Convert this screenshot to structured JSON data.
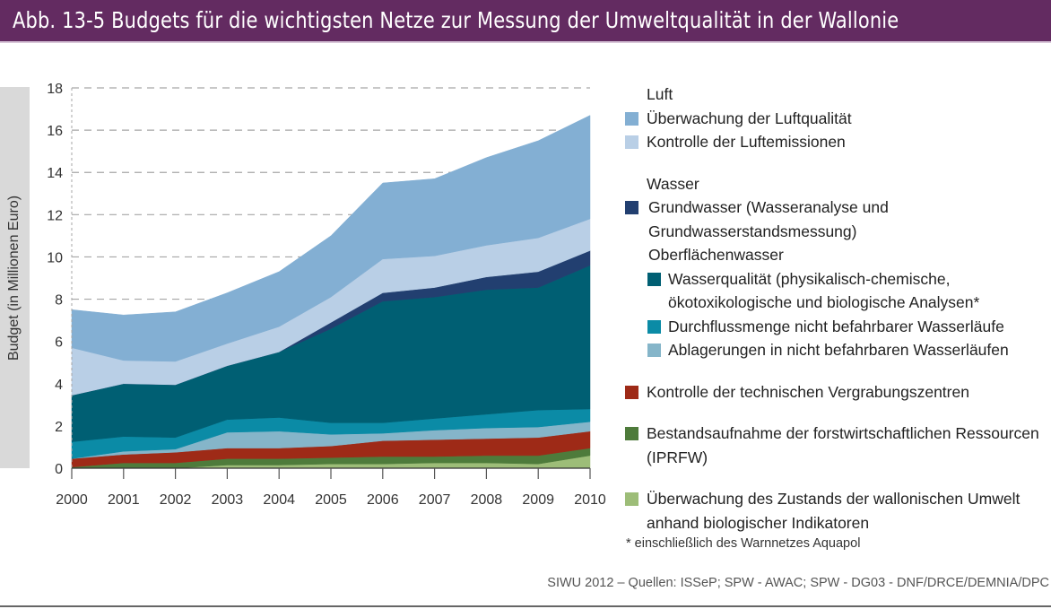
{
  "title": "Abb. 13-5 Budgets für die wichtigsten Netze zur Messung der Umweltqualität in der Wallonie",
  "footnote": "* einschließlich des Warnnetzes Aquapol",
  "source": "SIWU 2012 – Quellen: ISSeP; SPW - AWAC; SPW - DG03 - DNF/DRCE/DEMNIA/DPC",
  "legend": {
    "group_luft": "Luft",
    "group_wasser": "Wasser",
    "group_oberflaeche": "Oberflächenwasser",
    "luftqualitaet": "Überwachung der Luftqualität",
    "luftemissionen": "Kontrolle der Luftemissionen",
    "grundwasser_1": "Grundwasser (Wasseranalyse und",
    "grundwasser_2": "Grundwasserstandsmessung)",
    "wasserqualitaet_1": "Wasserqualität (physikalisch-chemische,",
    "wasserqualitaet_2": "ökotoxikologische und biologische Analysen*",
    "durchfluss": "Durchflussmenge nicht befahrbarer Wasserläufe",
    "ablagerungen": "Ablagerungen in nicht befahrbaren Wasserläufen",
    "vergrabung": "Kontrolle der technischen Vergrabungszentren",
    "iprfw_1": "Bestandsaufnahme der forstwirtschaftlichen Ressourcen",
    "iprfw_2": "(IPRFW)",
    "bio_1": "Überwachung des Zustands der wallonischen Umwelt",
    "bio_2": "anhand biologischer Indikatoren"
  },
  "chart_data": {
    "type": "area",
    "stacked": true,
    "title": "Abb. 13-5 Budgets für die wichtigsten Netze zur Messung der Umweltqualität in der Wallonie",
    "xlabel": "",
    "ylabel": "Budget (in Millionen Euro)",
    "ylim": [
      0,
      18
    ],
    "yticks": [
      0,
      2,
      4,
      6,
      8,
      10,
      12,
      14,
      16,
      18
    ],
    "grid": "horizontal-dashed",
    "legend_position": "right",
    "categories": [
      "2000",
      "2001",
      "2002",
      "2003",
      "2004",
      "2005",
      "2006",
      "2007",
      "2008",
      "2009",
      "2010"
    ],
    "series": [
      {
        "name": "Überwachung des Zustands der wallonischen Umwelt anhand biologischer Indikatoren",
        "color": "#9dbd78",
        "values": [
          0.0,
          0.0,
          0.0,
          0.15,
          0.15,
          0.2,
          0.2,
          0.25,
          0.25,
          0.2,
          0.6
        ]
      },
      {
        "name": "Bestandsaufnahme der forstwirtschaftlichen Ressourcen (IPRFW)",
        "color": "#4e7b3b",
        "values": [
          0.05,
          0.25,
          0.25,
          0.3,
          0.3,
          0.3,
          0.35,
          0.3,
          0.35,
          0.4,
          0.35
        ]
      },
      {
        "name": "Kontrolle der technischen Vergrabungszentren",
        "color": "#9e2a17",
        "values": [
          0.4,
          0.4,
          0.5,
          0.5,
          0.5,
          0.55,
          0.75,
          0.8,
          0.8,
          0.85,
          0.8
        ]
      },
      {
        "name": "Ablagerungen in nicht befahrbaren Wasserläufen",
        "color": "#85b5c9",
        "values": [
          0.0,
          0.15,
          0.15,
          0.75,
          0.8,
          0.55,
          0.35,
          0.45,
          0.5,
          0.5,
          0.45
        ]
      },
      {
        "name": "Durchflussmenge nicht befahrbarer Wasserläufe",
        "color": "#0b8ba6",
        "values": [
          0.8,
          0.7,
          0.55,
          0.6,
          0.65,
          0.55,
          0.5,
          0.55,
          0.65,
          0.8,
          0.6
        ]
      },
      {
        "name": "Wasserqualität (physikalisch-chemische, ökotoxikologische und biologische Analysen*)",
        "color": "#005f73",
        "values": [
          2.2,
          2.5,
          2.5,
          2.55,
          3.1,
          4.45,
          5.75,
          5.75,
          5.9,
          5.8,
          6.8
        ]
      },
      {
        "name": "Grundwasser (Wasseranalyse und Grundwasserstandsmessung)",
        "color": "#223f70",
        "values": [
          0.0,
          0.0,
          0.0,
          0.0,
          0.0,
          0.3,
          0.4,
          0.45,
          0.6,
          0.75,
          0.7
        ]
      },
      {
        "name": "Kontrolle der Luftemissionen",
        "color": "#b9cfe6",
        "values": [
          2.25,
          1.1,
          1.1,
          1.05,
          1.2,
          1.2,
          1.6,
          1.5,
          1.5,
          1.6,
          1.5
        ]
      },
      {
        "name": "Überwachung der Luftqualität",
        "color": "#83afd3",
        "values": [
          1.8,
          2.15,
          2.35,
          2.4,
          2.6,
          2.9,
          3.6,
          3.65,
          4.15,
          4.6,
          4.9
        ]
      }
    ]
  }
}
